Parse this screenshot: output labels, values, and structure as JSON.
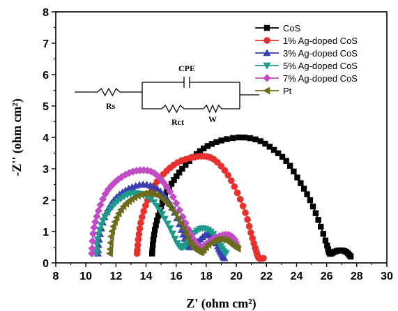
{
  "chart_data": {
    "type": "scatter",
    "xlabel": "Z' (ohm cm²)",
    "ylabel": "-Z'' (ohm cm²)",
    "xlim": [
      8,
      30
    ],
    "ylim": [
      0,
      8
    ],
    "x_ticks": [
      "8",
      "10",
      "12",
      "14",
      "16",
      "18",
      "20",
      "22",
      "24",
      "26",
      "28",
      "30"
    ],
    "y_ticks": [
      "0",
      "1",
      "2",
      "3",
      "4",
      "5",
      "6",
      "7",
      "8"
    ],
    "legend_position": "top-right",
    "series": [
      {
        "name": "CoS",
        "color": "#000000",
        "marker": "square",
        "x": [
          14.4,
          14.5,
          14.7,
          15.0,
          15.3,
          15.8,
          16.4,
          17.2,
          18.0,
          19.0,
          20.3,
          21.5,
          22.5,
          23.4,
          24.2,
          24.9,
          25.5,
          26.0,
          26.2,
          26.5,
          26.9,
          27.3,
          27.6
        ],
        "y": [
          0.3,
          0.8,
          1.3,
          1.8,
          2.2,
          2.6,
          3.0,
          3.4,
          3.7,
          3.9,
          4.0,
          3.9,
          3.6,
          3.2,
          2.6,
          2.0,
          1.3,
          0.6,
          0.3,
          0.35,
          0.4,
          0.35,
          0.2
        ]
      },
      {
        "name": "1% Ag-doped CoS",
        "color": "#e8302c",
        "marker": "circle",
        "x": [
          13.4,
          13.5,
          13.7,
          14.1,
          14.6,
          15.3,
          16.1,
          17.0,
          17.8,
          18.5,
          19.3,
          20.0,
          20.6,
          21.0,
          21.3,
          21.5,
          21.8
        ],
        "y": [
          0.3,
          0.8,
          1.4,
          2.0,
          2.5,
          2.9,
          3.2,
          3.35,
          3.4,
          3.3,
          2.9,
          2.3,
          1.6,
          0.9,
          0.4,
          0.15,
          0.15
        ]
      },
      {
        "name": "3% Ag-doped CoS",
        "color": "#3a3fb0",
        "marker": "triangle-up",
        "x": [
          10.8,
          10.9,
          11.2,
          11.7,
          12.3,
          13.0,
          13.8,
          14.6,
          15.3,
          15.9,
          16.4,
          16.7,
          17.0,
          17.5,
          18.0,
          18.5,
          18.8,
          19.0,
          19.2
        ],
        "y": [
          0.3,
          0.8,
          1.4,
          1.9,
          2.2,
          2.4,
          2.5,
          2.4,
          2.1,
          1.6,
          1.0,
          0.6,
          0.5,
          0.7,
          0.9,
          0.8,
          0.5,
          0.3,
          0.15
        ]
      },
      {
        "name": "5% Ag-doped CoS",
        "color": "#1e9a8c",
        "marker": "triangle-down",
        "x": [
          10.7,
          10.8,
          11.1,
          11.6,
          12.2,
          12.9,
          13.6,
          14.4,
          15.0,
          15.6,
          16.1,
          16.4,
          16.7,
          17.1,
          17.7,
          18.3,
          18.8,
          19.1,
          19.3
        ],
        "y": [
          0.3,
          0.8,
          1.3,
          1.7,
          2.0,
          2.2,
          2.2,
          2.0,
          1.6,
          1.1,
          0.6,
          0.5,
          0.6,
          0.9,
          1.1,
          1.0,
          0.7,
          0.4,
          0.3
        ]
      },
      {
        "name": "7% Ag-doped CoS",
        "color": "#c34cc6",
        "marker": "diamond",
        "x": [
          10.4,
          10.5,
          10.8,
          11.3,
          12.0,
          12.8,
          13.6,
          14.4,
          15.1,
          15.8,
          16.5,
          17.1,
          17.6,
          18.0,
          18.6,
          19.3,
          19.8,
          20.1
        ],
        "y": [
          0.3,
          1.0,
          1.6,
          2.2,
          2.6,
          2.85,
          2.95,
          2.9,
          2.6,
          2.1,
          1.4,
          0.8,
          0.5,
          0.6,
          0.8,
          0.9,
          0.8,
          0.5
        ]
      },
      {
        "name": "Pt",
        "color": "#6b6b1e",
        "marker": "triangle-left",
        "x": [
          11.6,
          11.7,
          12.0,
          12.5,
          13.1,
          13.8,
          14.5,
          15.2,
          15.9,
          16.5,
          17.0,
          17.4,
          17.7,
          18.2,
          18.8,
          19.4,
          19.8,
          20.1
        ],
        "y": [
          0.3,
          0.9,
          1.4,
          1.8,
          2.05,
          2.2,
          2.2,
          2.0,
          1.6,
          1.1,
          0.6,
          0.4,
          0.35,
          0.6,
          0.75,
          0.7,
          0.55,
          0.45
        ]
      }
    ],
    "inset_circuit": {
      "labels": [
        "CPE",
        "Rs",
        "Rct",
        "W"
      ]
    }
  }
}
